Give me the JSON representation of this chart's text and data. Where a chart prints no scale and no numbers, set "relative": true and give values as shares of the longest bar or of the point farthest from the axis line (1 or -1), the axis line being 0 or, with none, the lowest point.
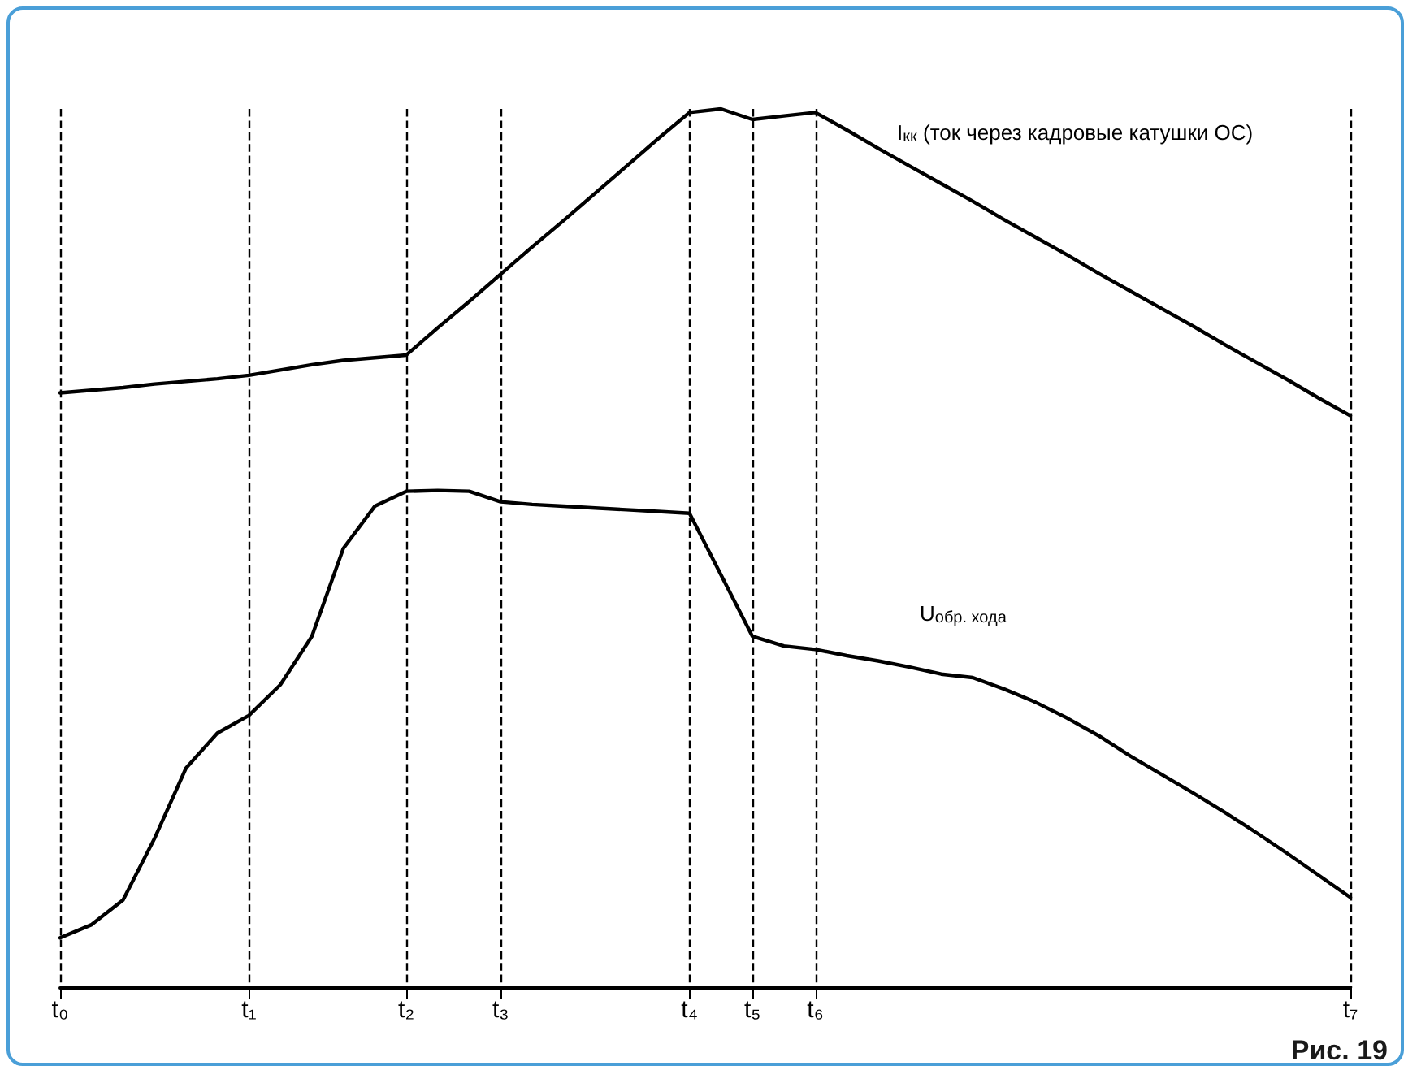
{
  "chart_data": {
    "type": "line",
    "relative": true,
    "marker": "none",
    "line_style": "solid",
    "grid": "x",
    "categories": [
      "t₀",
      null,
      null,
      null,
      null,
      null,
      "t₁",
      null,
      null,
      null,
      null,
      "t₂",
      null,
      null,
      "t₃",
      null,
      null,
      null,
      null,
      null,
      "t₄",
      null,
      "t₅",
      null,
      "t₆",
      null,
      null,
      null,
      null,
      null,
      null,
      null,
      null,
      null,
      null,
      null,
      null,
      null,
      null,
      null,
      null,
      "t₇"
    ],
    "series": [
      {
        "color": "#000000",
        "values": [
          0.677,
          0.68,
          0.683,
          0.687,
          0.69,
          0.693,
          0.697,
          0.703,
          0.709,
          0.714,
          0.717,
          0.72,
          0.751,
          0.781,
          0.812,
          0.843,
          0.873,
          0.904,
          0.935,
          0.966,
          0.996,
          1,
          0.988,
          0.992,
          0.996,
          0.976,
          0.955,
          0.935,
          0.915,
          0.895,
          0.874,
          0.854,
          0.834,
          0.813,
          0.793,
          0.773,
          0.753,
          0.732,
          0.712,
          0.692,
          0.671,
          0.651
        ]
      },
      {
        "color": "#000000",
        "values": [
          0.057,
          0.072,
          0.1,
          0.17,
          0.25,
          0.29,
          0.31,
          0.345,
          0.4,
          0.5,
          0.548,
          0.565,
          0.566,
          0.565,
          0.553,
          0.55,
          0.548,
          0.546,
          0.544,
          0.542,
          0.54,
          0.47,
          0.4,
          0.389,
          0.385,
          0.378,
          0.372,
          0.365,
          0.357,
          0.353,
          0.34,
          0.325,
          0.307,
          0.287,
          0.264,
          0.243,
          0.222,
          0.2,
          0.177,
          0.153,
          0.128,
          0.103
        ]
      }
    ],
    "annotations": [
      "I$_{кк}$ (ток через кадровые катушки ОС)",
      "U$_{обр. хода}$",
      "Рис. 19"
    ]
  }
}
